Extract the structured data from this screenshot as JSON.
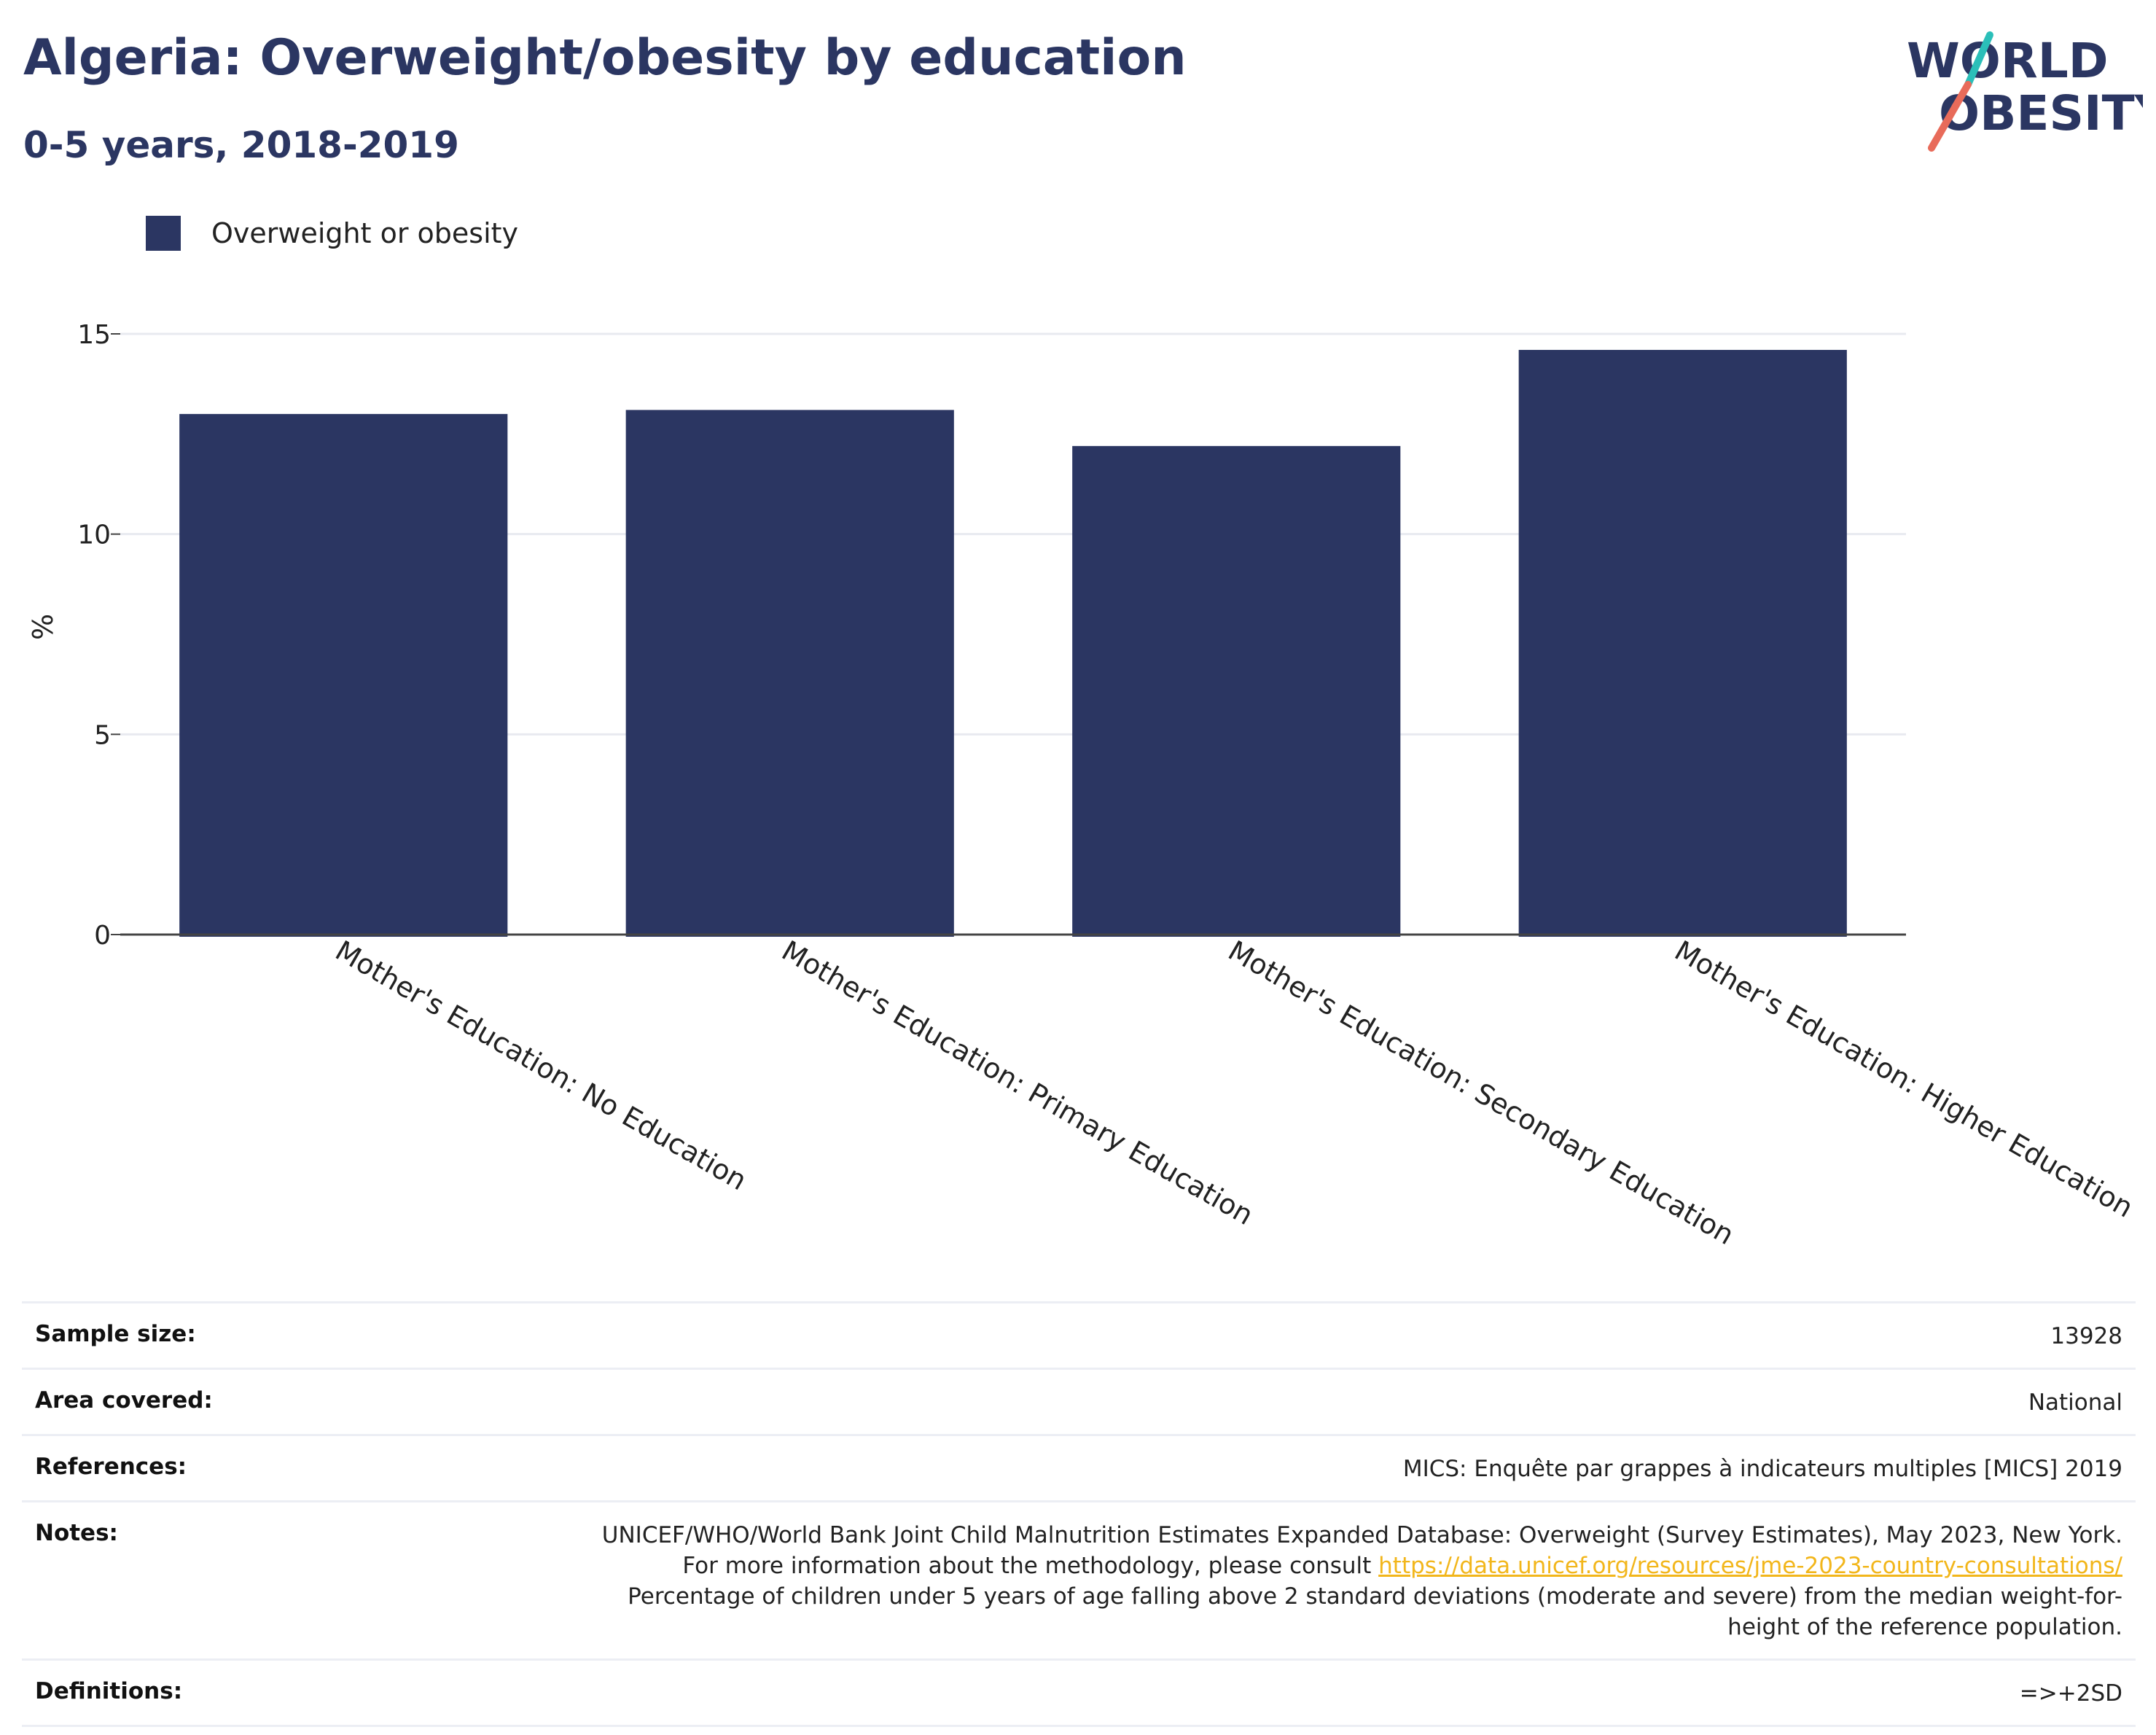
{
  "header": {
    "title": "Algeria: Overweight/obesity by education",
    "subtitle": "0-5 years, 2018-2019"
  },
  "logo": {
    "line1": "WORLD",
    "line2": "OBESITY",
    "colors": {
      "text": "#2b3662",
      "slash_top": "#2bbfb9",
      "slash_bottom": "#e86b5a"
    }
  },
  "legend": {
    "label": "Overweight or obesity",
    "color": "#2b3662"
  },
  "chart_data": {
    "type": "bar",
    "categories": [
      "Mother's Education: No Education",
      "Mother's Education: Primary Education",
      "Mother's Education: Secondary Education",
      "Mother's Education: Higher Education"
    ],
    "series": [
      {
        "name": "Overweight or obesity",
        "values": [
          13.0,
          13.1,
          12.2,
          14.6
        ]
      }
    ],
    "ylabel": "%",
    "ylim": [
      0,
      15
    ],
    "yticks": [
      0,
      5,
      10,
      15
    ],
    "grid": true,
    "bar_color": "#2b3662",
    "legend_position": "top-left"
  },
  "info": {
    "sample_size": {
      "label": "Sample size:",
      "value": "13928"
    },
    "area_covered": {
      "label": "Area covered:",
      "value": "National"
    },
    "references": {
      "label": "References:",
      "value": "MICS: Enquête par grappes à indicateurs multiples [MICS] 2019"
    },
    "notes": {
      "label": "Notes:",
      "text_before_link": "UNICEF/WHO/World Bank Joint Child Malnutrition Estimates Expanded Database: Overweight (Survey Estimates), May 2023, New York. For more information about the methodology, please consult ",
      "link_text": "https://data.unicef.org/resources/jme-2023-country-consultations/",
      "text_after_link": " Percentage of children under 5 years of age falling above 2 standard deviations (moderate and severe) from the median weight-for-height of the reference population."
    },
    "definitions": {
      "label": "Definitions:",
      "value": "=>+2SD"
    }
  }
}
